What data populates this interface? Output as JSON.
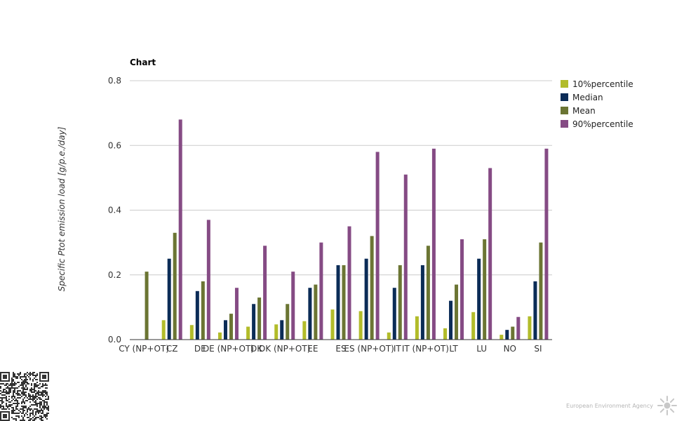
{
  "footer": {
    "brand": "European Environment Agency"
  },
  "chart_data": {
    "type": "bar",
    "title": "Chart",
    "xlabel": "",
    "ylabel": "Specific Ptot emission load [g/p.e./day]",
    "ylim": [
      0,
      0.8
    ],
    "yticks": [
      0.0,
      0.2,
      0.4,
      0.6,
      0.8
    ],
    "grid": true,
    "legend_position": "right",
    "categories": [
      "CY (NP+OT)",
      "CZ",
      "DE",
      "DE (NP+OT)",
      "DK",
      "DK (NP+OT)",
      "EE",
      "ES",
      "ES (NP+OT)",
      "IT",
      "IT (NP+OT)",
      "LT",
      "LU",
      "NO",
      "SI"
    ],
    "series": [
      {
        "name": "10%percentile",
        "color": "#b2bc2a",
        "values": [
          null,
          0.06,
          0.045,
          0.022,
          0.04,
          0.047,
          0.057,
          0.093,
          0.088,
          0.022,
          0.072,
          0.035,
          0.085,
          0.015,
          0.072
        ]
      },
      {
        "name": "Median",
        "color": "#0b2c57",
        "values": [
          null,
          0.25,
          0.15,
          0.06,
          0.11,
          0.06,
          0.16,
          0.23,
          0.25,
          0.16,
          0.23,
          0.12,
          0.25,
          0.03,
          0.18
        ]
      },
      {
        "name": "Mean",
        "color": "#6b7533",
        "values": [
          0.21,
          0.33,
          0.18,
          0.08,
          0.13,
          0.11,
          0.17,
          0.23,
          0.32,
          0.23,
          0.29,
          0.17,
          0.31,
          0.04,
          0.3
        ]
      },
      {
        "name": "90%percentile",
        "color": "#854b84",
        "values": [
          null,
          0.68,
          0.37,
          0.16,
          0.29,
          0.21,
          0.3,
          0.35,
          0.58,
          0.51,
          0.59,
          0.31,
          0.53,
          0.07,
          0.59
        ]
      }
    ]
  }
}
